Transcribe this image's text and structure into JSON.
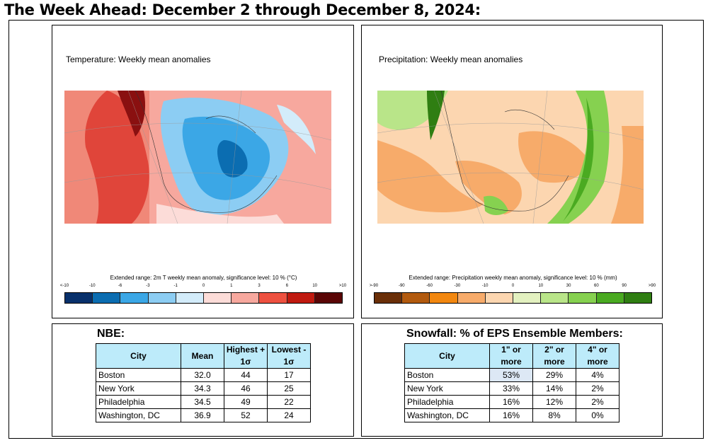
{
  "title": "The Week Ahead: December 2 through December 8, 2024:",
  "temperature_panel": {
    "title": "Temperature: Weekly mean anomalies",
    "colorbar_title": "Extended range: 2m T weekly mean anomaly, significance level: 10 % (°C)",
    "ticks": [
      "<-10",
      "-10",
      "-6",
      "-3",
      "-1",
      "0",
      "1",
      "3",
      "6",
      "10",
      ">10"
    ],
    "colors": [
      "#08306b",
      "#0b6db1",
      "#3ba7e6",
      "#8ccdf3",
      "#d3ecfa",
      "#fcdcd8",
      "#f7a89e",
      "#ee5140",
      "#c01a10",
      "#5a0505"
    ]
  },
  "precipitation_panel": {
    "title": "Precipitation: Weekly mean anomalies",
    "colorbar_title": "Extended range: Precipitation weekly mean anomaly, significance level: 10 % (mm)",
    "ticks": [
      ">-90",
      "-90",
      "-60",
      "-30",
      "-10",
      "0",
      "10",
      "30",
      "60",
      "90",
      ">90"
    ],
    "colors": [
      "#6a2f08",
      "#b25a0e",
      "#f2870f",
      "#f7ab6a",
      "#fcd6b0",
      "#e3f1c0",
      "#b9e589",
      "#86d150",
      "#4aaa21",
      "#2f7e12"
    ]
  },
  "nbe": {
    "title": "NBE:",
    "headers": [
      "City",
      "Mean",
      "Highest + 1σ",
      "Lowest - 1σ"
    ],
    "rows": [
      [
        "Boston",
        "32.0",
        "44",
        "17"
      ],
      [
        "New York",
        "34.3",
        "46",
        "25"
      ],
      [
        "Philadelphia",
        "34.5",
        "49",
        "22"
      ],
      [
        "Washington, DC",
        "36.9",
        "52",
        "24"
      ]
    ]
  },
  "snowfall": {
    "title": "Snowfall: % of EPS Ensemble Members:",
    "headers": [
      "City",
      "1\" or more",
      "2\" or more",
      "4\" or more"
    ],
    "rows": [
      [
        "Boston",
        "53%",
        "29%",
        "4%"
      ],
      [
        "New York",
        "33%",
        "14%",
        "2%"
      ],
      [
        "Philadelphia",
        "16%",
        "12%",
        "2%"
      ],
      [
        "Washington, DC",
        "16%",
        "8%",
        "0%"
      ]
    ]
  }
}
